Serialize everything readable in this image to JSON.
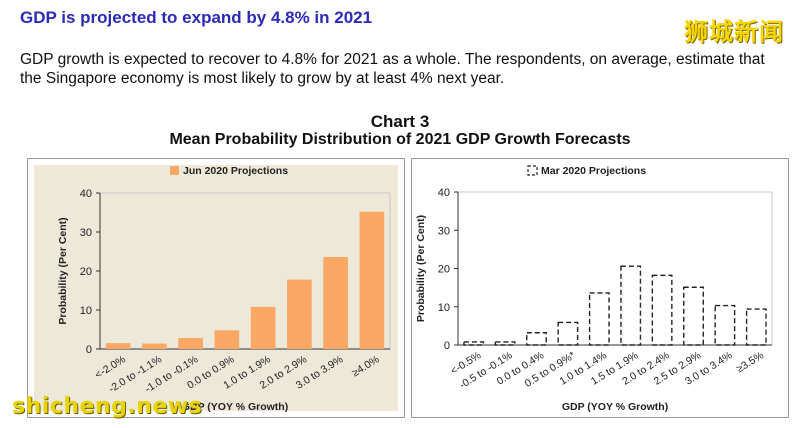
{
  "heading": "GDP is projected to expand by 4.8% in 2021",
  "paragraph": "GDP growth is expected to recover to 4.8% for 2021 as a whole. The respondents, on average, estimate that the Singapore economy is most likely to grow by at least 4% next year.",
  "watermark_cn": "狮城新闻",
  "watermark_en": "shicheng.news",
  "chart_title_1": "Chart 3",
  "chart_title_2": "Mean Probability Distribution of 2021 GDP Growth Forecasts",
  "colors": {
    "bar_fill": "#f8a864",
    "plot_bg": "#ede8d8",
    "heading": "#2b2bb8",
    "dash": "#222222"
  },
  "chart_data": [
    {
      "type": "bar",
      "legend": "Jun 2020 Projections",
      "categories": [
        "<-2.0%",
        "-2.0 to -1.1%",
        "-1.0 to -0.1%",
        "0.0 to 0.9%",
        "1.0 to 1.9%",
        "2.0 to 2.9%",
        "3.0 to 3.9%",
        "≥4.0%"
      ],
      "values": [
        1.5,
        1.4,
        2.8,
        4.8,
        10.8,
        17.8,
        23.6,
        35.2
      ],
      "xlabel": "GDP (YOY % Growth)",
      "ylabel": "Probability (Per Cent)",
      "ylim": [
        0,
        40
      ],
      "yticks": [
        0,
        10,
        20,
        30,
        40
      ]
    },
    {
      "type": "bar",
      "legend": "Mar 2020 Projections",
      "categories": [
        "<-0.5%",
        "-0.5 to -0.1%",
        "0.0 to 0.4%",
        "0.5 to 0.9%*",
        "1.0 to 1.4%",
        "1.5 to 1.9%",
        "2.0 to 2.4%",
        "2.5 to 2.9%",
        "3.0 to 3.4%",
        "≥3.5%"
      ],
      "values": [
        0.8,
        0.8,
        3.2,
        5.9,
        13.6,
        20.6,
        18.2,
        15.1,
        10.3,
        9.4
      ],
      "xlabel": "GDP (YOY % Growth)",
      "ylabel": "Probability (Per Cent)",
      "ylim": [
        0,
        40
      ],
      "yticks": [
        0,
        10,
        20,
        30,
        40
      ]
    }
  ]
}
